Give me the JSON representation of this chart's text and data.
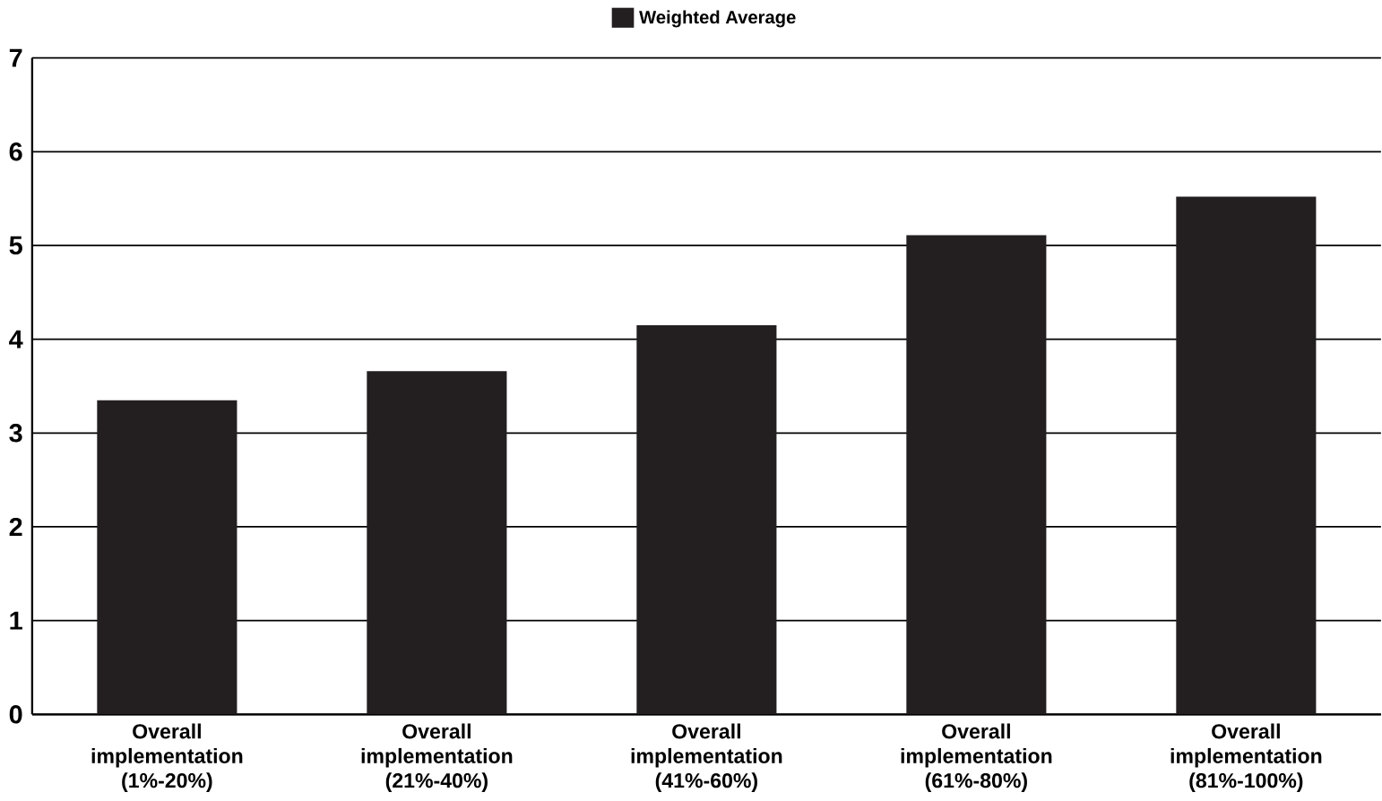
{
  "chart_data": {
    "type": "bar",
    "categories": [
      "Overall implementation (1%-20%)",
      "Overall implementation (21%-40%)",
      "Overall implementation (41%-60%)",
      "Overall implementation (61%-80%)",
      "Overall implementation (81%-100%)"
    ],
    "series": [
      {
        "name": "Weighted Average",
        "color": "#231f20",
        "values": [
          3.35,
          3.66,
          4.15,
          5.11,
          5.52
        ]
      }
    ],
    "ylim": [
      0,
      7
    ],
    "yticks": [
      0,
      1,
      2,
      3,
      4,
      5,
      6,
      7
    ],
    "grid": "y",
    "legend": "top"
  }
}
